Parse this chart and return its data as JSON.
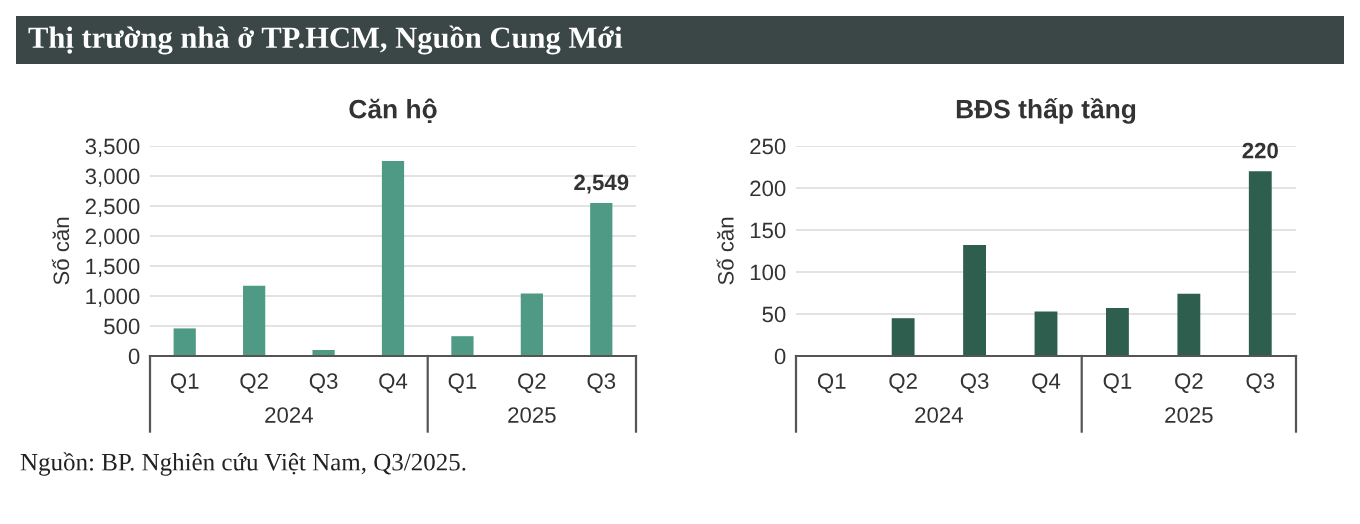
{
  "chart_data": [
    {
      "type": "other",
      "title": "Thị trường nhà ở TP.HCM, Nguồn Cung Mới",
      "annotations": [
        "Nguồn: BP. Nghiên cứu Việt Nam, Q3/2025."
      ]
    },
    {
      "type": "bar",
      "title": "Căn hộ",
      "ylabel": "Số căn",
      "categories": [
        "Q1",
        "Q2",
        "Q3",
        "Q4",
        "Q1",
        "Q2",
        "Q3"
      ],
      "values": [
        460,
        1170,
        100,
        3250,
        330,
        1040,
        2549
      ],
      "color": "#4e9a84",
      "value_labels": [
        null,
        null,
        null,
        null,
        null,
        null,
        "2,549"
      ],
      "ylim": [
        0,
        3500
      ],
      "yticks": [
        {
          "value": 0,
          "label": "0"
        },
        {
          "value": 500,
          "label": "500"
        },
        {
          "value": 1000,
          "label": "1,000"
        },
        {
          "value": 1500,
          "label": "1,500"
        },
        {
          "value": 2000,
          "label": "2,000"
        },
        {
          "value": 2500,
          "label": "2,500"
        },
        {
          "value": 3000,
          "label": "3,000"
        },
        {
          "value": 3500,
          "label": "3,500"
        }
      ],
      "grid": "y",
      "legend": false,
      "annotations": [
        "2024",
        "2025"
      ]
    },
    {
      "type": "bar",
      "title": "BĐS thấp tầng",
      "ylabel": "Số căn",
      "categories": [
        "Q1",
        "Q2",
        "Q3",
        "Q4",
        "Q1",
        "Q2",
        "Q3"
      ],
      "values": [
        0,
        45,
        132,
        53,
        57,
        74,
        220
      ],
      "color": "#2e5e4e",
      "value_labels": [
        null,
        null,
        null,
        null,
        null,
        null,
        "220"
      ],
      "ylim": [
        0,
        250
      ],
      "yticks": [
        0,
        50,
        100,
        150,
        200,
        250
      ],
      "grid": "y",
      "legend": false,
      "annotations": [
        "2024",
        "2025"
      ]
    }
  ]
}
